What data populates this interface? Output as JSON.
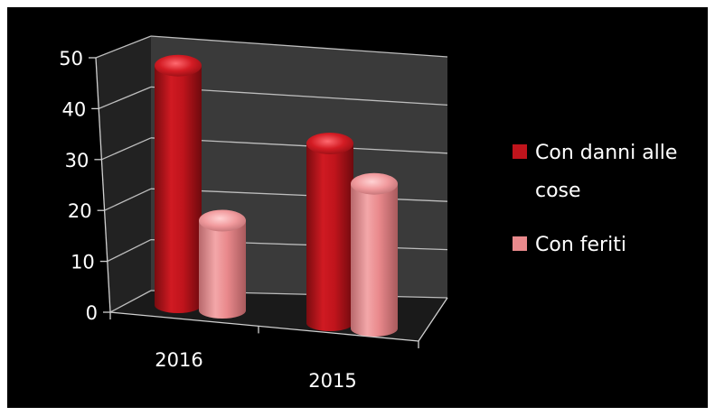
{
  "chart_data": {
    "type": "bar",
    "categories": [
      "2016",
      "2015"
    ],
    "series": [
      {
        "name": "Con danni alle cose",
        "values": [
          48,
          36
        ],
        "color": "#c0141c"
      },
      {
        "name": "Con feriti",
        "values": [
          18,
          29
        ],
        "color": "#e9898c"
      }
    ],
    "ylim": [
      0,
      50
    ],
    "yticks": [
      "0",
      "10",
      "20",
      "30",
      "40",
      "50"
    ],
    "grid": true,
    "legend_position": "right",
    "background_color": "#000000",
    "wall_color": "#3a3a3a",
    "title": "",
    "xlabel": "",
    "ylabel": ""
  }
}
